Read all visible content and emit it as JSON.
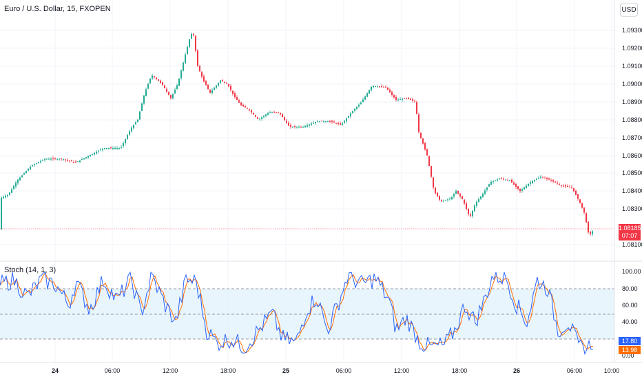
{
  "header": {
    "symbol_title": "Euro / U.S. Dollar, 15, FXOPEN",
    "currency_button": "USD"
  },
  "price_axis": {
    "ticks": [
      "1.09300",
      "1.09200",
      "1.09100",
      "1.09000",
      "1.08900",
      "1.08800",
      "1.08700",
      "1.08600",
      "1.08500",
      "1.08400",
      "1.08300",
      "1.08100"
    ]
  },
  "current_price": {
    "price": "1.08185",
    "countdown": "07:07",
    "color": "#f23645"
  },
  "indicator": {
    "title": "Stoch (14, 1, 3)",
    "ticks": [
      "100.00",
      "80.00",
      "60.00",
      "40.00",
      "0.00"
    ],
    "k_value": "17.80",
    "d_value": "13.98",
    "k_color": "#2962ff",
    "d_color": "#ff6d00",
    "band_color": "#e3f2fd"
  },
  "time_axis": {
    "labels": [
      {
        "text": "24",
        "bold": true
      },
      {
        "text": "06:00",
        "bold": false
      },
      {
        "text": "12:00",
        "bold": false
      },
      {
        "text": "18:00",
        "bold": false
      },
      {
        "text": "25",
        "bold": true
      },
      {
        "text": "06:00",
        "bold": false
      },
      {
        "text": "12:00",
        "bold": false
      },
      {
        "text": "18:00",
        "bold": false
      },
      {
        "text": "26",
        "bold": true
      },
      {
        "text": "06:00",
        "bold": false
      },
      {
        "text": "10:00",
        "bold": false
      }
    ]
  },
  "colors": {
    "up": "#22ab94",
    "down": "#f23645"
  }
}
